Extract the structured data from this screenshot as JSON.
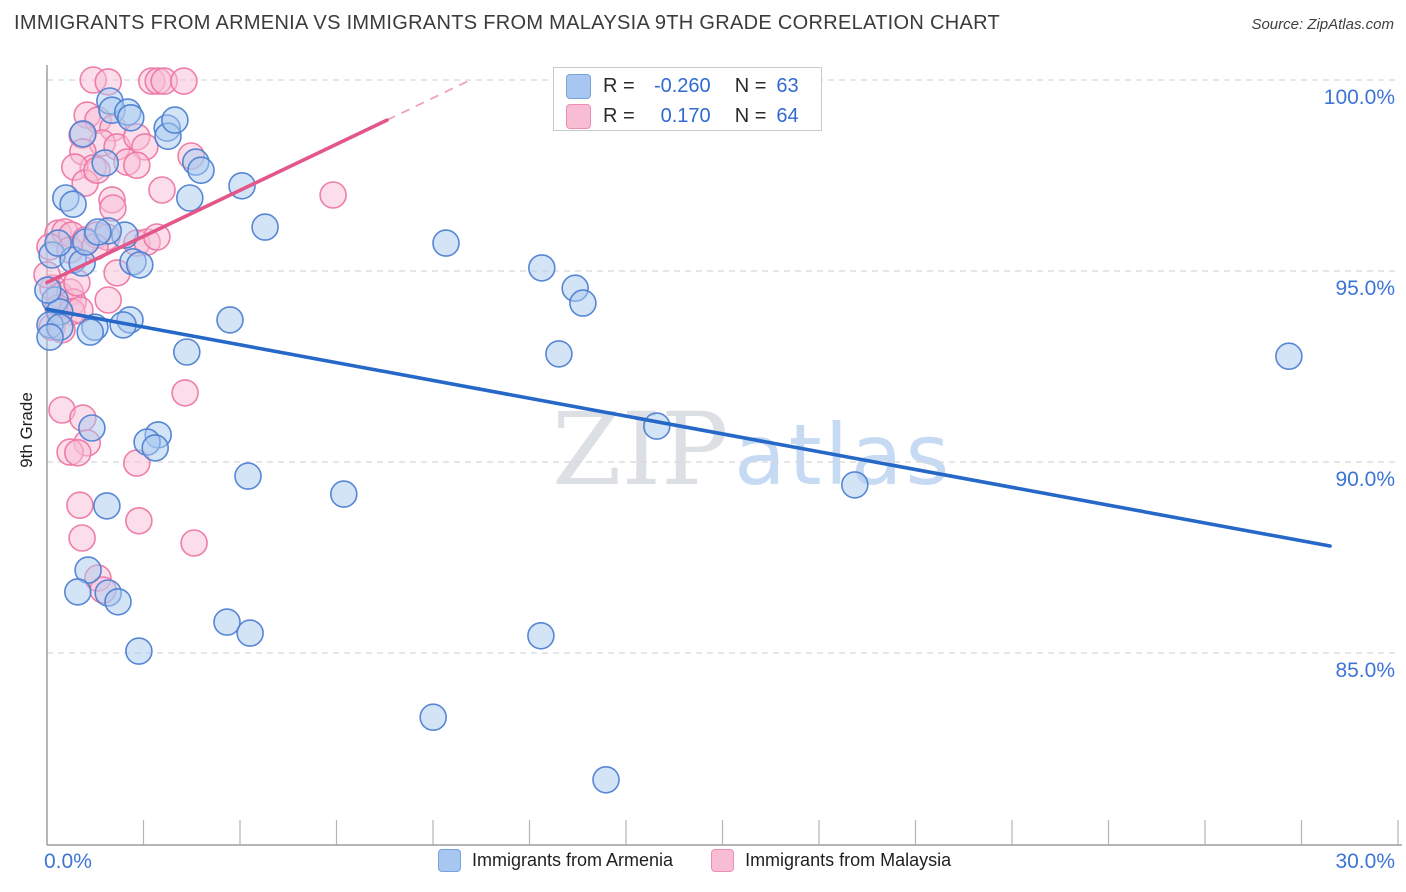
{
  "header": {
    "title": "IMMIGRANTS FROM ARMENIA VS IMMIGRANTS FROM MALAYSIA 9TH GRADE CORRELATION CHART",
    "source": "Source: ZipAtlas.com"
  },
  "watermark": {
    "zip": "ZIP",
    "atlas": "atlas"
  },
  "axes": {
    "y_label": "9th Grade",
    "y_ticks": [
      "100.0%",
      "95.0%",
      "90.0%",
      "85.0%"
    ],
    "x_min_label": "0.0%",
    "x_max_label": "30.0%"
  },
  "legend": {
    "rows": [
      {
        "r_label": "R =",
        "r_value": "-0.260",
        "n_label": "N =",
        "n_value": "63"
      },
      {
        "r_label": "R =",
        "r_value": "0.170",
        "n_label": "N =",
        "n_value": "64"
      }
    ]
  },
  "bottom_legend": {
    "armenia": "Immigrants from Armenia",
    "malaysia": "Immigrants from Malaysia"
  },
  "colors": {
    "blue_marker_fill": "#aac9f0",
    "blue_marker_stroke": "#4f81d2",
    "blue_line": "#2668c8",
    "pink_marker_fill": "#f7bed5",
    "pink_marker_stroke": "#ee77a4",
    "pink_line": "#e2568a",
    "grid": "#d8d8d8",
    "axis": "#9d9d9d",
    "tick": "#b5b5b5",
    "label_blue": "#3d74d6"
  },
  "chart_data": {
    "type": "scatter",
    "xlabel": "",
    "ylabel": "9th Grade",
    "xlim": [
      0,
      30
    ],
    "ylim": [
      80,
      100.5
    ],
    "y_gridlines": [
      100,
      95,
      90,
      85
    ],
    "x_tick_count": 14,
    "grid": "dashed-horizontal",
    "legend_position": "top-center",
    "series": [
      {
        "name": "Immigrants from Armenia",
        "r": -0.26,
        "n": 63,
        "trend": {
          "x1": 0,
          "y1": 94.0,
          "x2": 30,
          "y2": 87.8
        },
        "points": [
          [
            1.47,
            99.45
          ],
          [
            1.52,
            99.21
          ],
          [
            1.89,
            99.16
          ],
          [
            1.96,
            99.01
          ],
          [
            2.81,
            98.74
          ],
          [
            2.83,
            98.53
          ],
          [
            0.84,
            98.59
          ],
          [
            2.99,
            98.95
          ],
          [
            1.36,
            97.83
          ],
          [
            3.48,
            97.85
          ],
          [
            3.6,
            97.64
          ],
          [
            3.34,
            96.91
          ],
          [
            4.56,
            97.23
          ],
          [
            5.1,
            96.15
          ],
          [
            0.44,
            96.91
          ],
          [
            0.61,
            96.75
          ],
          [
            1.82,
            95.94
          ],
          [
            0.12,
            95.42
          ],
          [
            0.61,
            95.29
          ],
          [
            0.82,
            95.21
          ],
          [
            2.01,
            95.24
          ],
          [
            2.17,
            95.16
          ],
          [
            0.91,
            95.76
          ],
          [
            1.43,
            96.05
          ],
          [
            1.19,
            96.02
          ],
          [
            0.26,
            95.73
          ],
          [
            0.19,
            94.24
          ],
          [
            0.3,
            93.93
          ],
          [
            0.02,
            94.5
          ],
          [
            1.94,
            93.72
          ],
          [
            1.78,
            93.59
          ],
          [
            0.07,
            93.59
          ],
          [
            0.3,
            93.53
          ],
          [
            1.12,
            93.53
          ],
          [
            1.01,
            93.4
          ],
          [
            0.07,
            93.27
          ],
          [
            4.28,
            93.72
          ],
          [
            3.27,
            92.88
          ],
          [
            1.05,
            90.89
          ],
          [
            2.6,
            90.71
          ],
          [
            2.34,
            90.52
          ],
          [
            2.53,
            90.37
          ],
          [
            4.7,
            89.63
          ],
          [
            6.94,
            89.16
          ],
          [
            1.4,
            88.85
          ],
          [
            0.96,
            87.17
          ],
          [
            0.72,
            86.6
          ],
          [
            1.43,
            86.57
          ],
          [
            1.66,
            86.34
          ],
          [
            4.21,
            85.81
          ],
          [
            4.75,
            85.52
          ],
          [
            2.15,
            85.05
          ],
          [
            9.33,
            95.73
          ],
          [
            11.57,
            95.08
          ],
          [
            12.35,
            94.55
          ],
          [
            12.53,
            94.16
          ],
          [
            11.97,
            92.83
          ],
          [
            14.26,
            90.94
          ],
          [
            18.89,
            89.4
          ],
          [
            11.55,
            85.45
          ],
          [
            9.03,
            83.32
          ],
          [
            13.07,
            81.68
          ],
          [
            29.04,
            92.77
          ]
        ]
      },
      {
        "name": "Immigrants from Malaysia",
        "r": 0.17,
        "n": 64,
        "trend": {
          "x1": 0,
          "y1": 94.7,
          "x2": 7.95,
          "y2": 98.95
        },
        "trend_dash": {
          "x1": 7.95,
          "y1": 98.95,
          "x2": 9.9,
          "y2": 100.0
        },
        "points": [
          [
            1.08,
            100.0
          ],
          [
            1.43,
            99.95
          ],
          [
            2.45,
            99.97
          ],
          [
            2.6,
            99.97
          ],
          [
            2.74,
            99.97
          ],
          [
            3.2,
            99.97
          ],
          [
            0.94,
            99.08
          ],
          [
            1.19,
            98.95
          ],
          [
            1.54,
            98.74
          ],
          [
            1.29,
            98.35
          ],
          [
            0.82,
            98.56
          ],
          [
            1.64,
            98.25
          ],
          [
            0.84,
            98.12
          ],
          [
            2.1,
            98.51
          ],
          [
            2.29,
            98.25
          ],
          [
            1.87,
            97.85
          ],
          [
            2.1,
            97.77
          ],
          [
            1.08,
            97.7
          ],
          [
            0.65,
            97.72
          ],
          [
            0.89,
            97.3
          ],
          [
            1.17,
            97.64
          ],
          [
            3.37,
            98.01
          ],
          [
            2.69,
            97.12
          ],
          [
            1.52,
            96.86
          ],
          [
            1.54,
            96.65
          ],
          [
            6.69,
            96.99
          ],
          [
            0.26,
            95.99
          ],
          [
            0.42,
            96.02
          ],
          [
            0.58,
            95.94
          ],
          [
            0.07,
            95.63
          ],
          [
            0.54,
            95.55
          ],
          [
            0.89,
            95.81
          ],
          [
            1.17,
            95.94
          ],
          [
            1.4,
            95.89
          ],
          [
            1.12,
            95.63
          ],
          [
            0.14,
            94.55
          ],
          [
            0.3,
            94.37
          ],
          [
            0.54,
            94.45
          ],
          [
            0.61,
            94.19
          ],
          [
            0.26,
            94.03
          ],
          [
            0.58,
            93.93
          ],
          [
            0.77,
            93.98
          ],
          [
            0.12,
            93.53
          ],
          [
            0.35,
            93.46
          ],
          [
            0.7,
            94.69
          ],
          [
            1.43,
            94.24
          ],
          [
            1.64,
            94.95
          ],
          [
            2.1,
            95.73
          ],
          [
            2.34,
            95.76
          ],
          [
            2.57,
            95.89
          ],
          [
            3.23,
            91.81
          ],
          [
            0.35,
            91.36
          ],
          [
            0.84,
            91.15
          ],
          [
            0.94,
            90.5
          ],
          [
            0.54,
            90.26
          ],
          [
            0.72,
            90.24
          ],
          [
            2.1,
            89.97
          ],
          [
            0.77,
            88.87
          ],
          [
            2.15,
            88.46
          ],
          [
            0.82,
            88.01
          ],
          [
            3.44,
            87.88
          ],
          [
            1.19,
            86.96
          ],
          [
            1.31,
            86.65
          ],
          [
            0.0,
            94.9
          ]
        ]
      }
    ]
  }
}
